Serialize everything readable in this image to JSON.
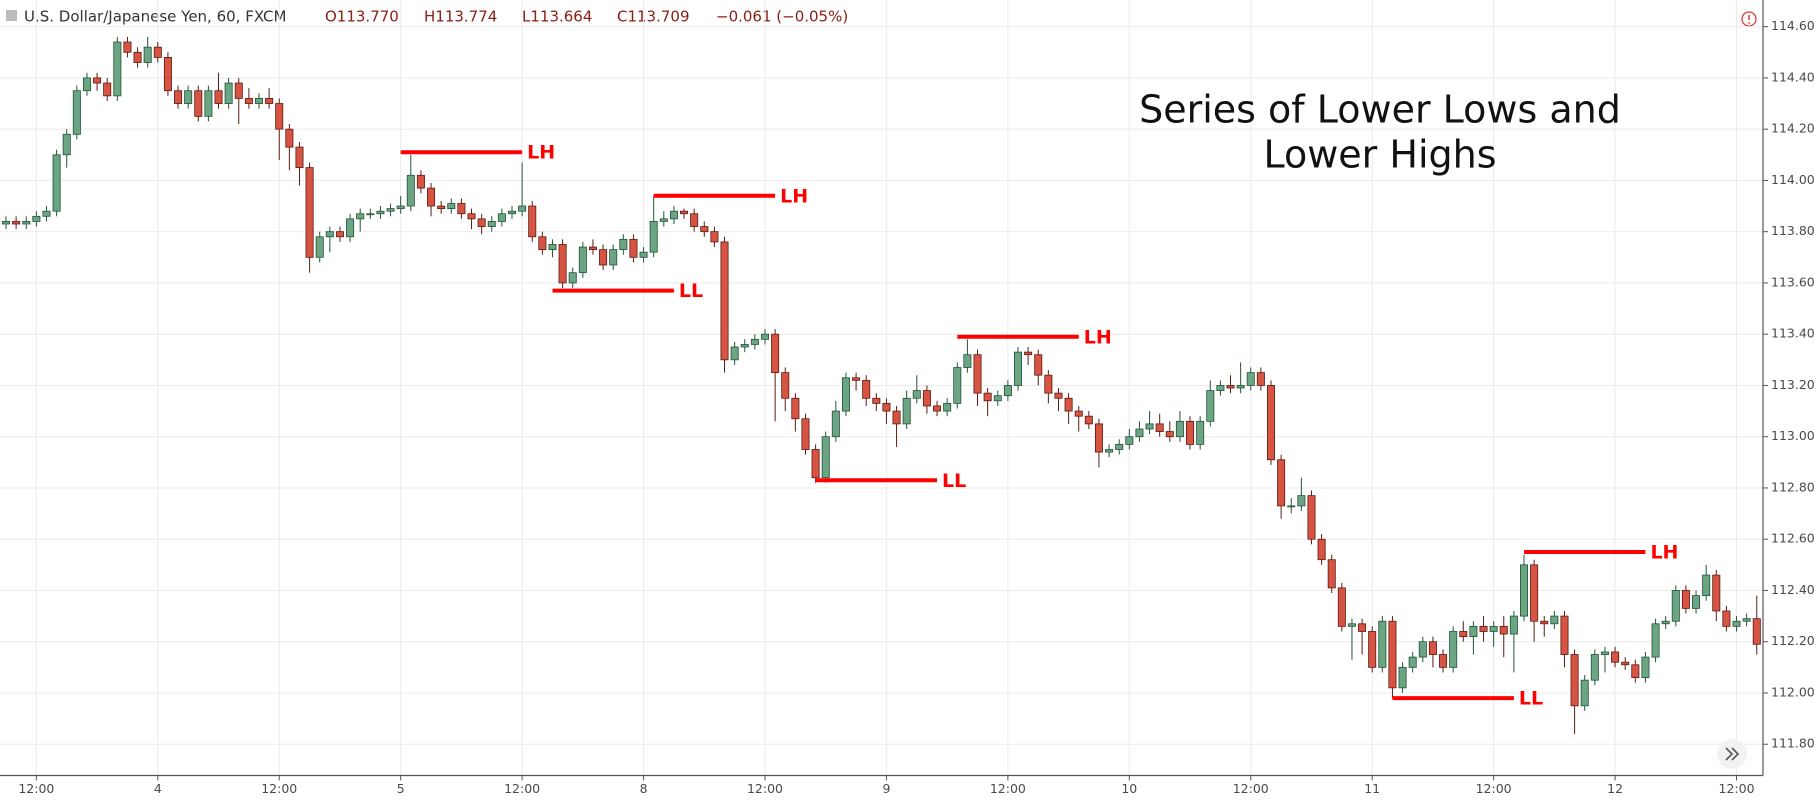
{
  "header": {
    "symbol": "U.S. Dollar/Japanese Yen, 60, FXCM",
    "open": "O113.770",
    "high": "H113.774",
    "low": "L113.664",
    "close": "C113.709",
    "change": "−0.061 (−0.05%)"
  },
  "chart_data": {
    "type": "candlestick",
    "title_lines": [
      "Series of Lower Lows and",
      "Lower Highs"
    ],
    "up_color": "#6ba583",
    "down_color": "#d75442",
    "up_border": "#225437",
    "down_border": "#5b1a13",
    "grid": true,
    "ylim": [
      111.678,
      114.704
    ],
    "yticks": [
      {
        "value": 111.8,
        "label": "111.800"
      },
      {
        "value": 112.0,
        "label": "112.000"
      },
      {
        "value": 112.2,
        "label": "112.200"
      },
      {
        "value": 112.4,
        "label": "112.400"
      },
      {
        "value": 112.6,
        "label": "112.600"
      },
      {
        "value": 112.8,
        "label": "112.800"
      },
      {
        "value": 113.0,
        "label": "113.000"
      },
      {
        "value": 113.2,
        "label": "113.200"
      },
      {
        "value": 113.4,
        "label": "113.400"
      },
      {
        "value": 113.6,
        "label": "113.600"
      },
      {
        "value": 113.8,
        "label": "113.800"
      },
      {
        "value": 114.0,
        "label": "114.000"
      },
      {
        "value": 114.2,
        "label": "114.200"
      },
      {
        "value": 114.4,
        "label": "114.400"
      },
      {
        "value": 114.6,
        "label": "114.600"
      }
    ],
    "categories": [
      null,
      null,
      null,
      "12:00",
      null,
      null,
      null,
      null,
      null,
      null,
      null,
      null,
      null,
      null,
      null,
      "4",
      null,
      null,
      null,
      null,
      null,
      null,
      null,
      null,
      null,
      null,
      null,
      "12:00",
      null,
      null,
      null,
      null,
      null,
      null,
      null,
      null,
      null,
      null,
      null,
      "5",
      null,
      null,
      null,
      null,
      null,
      null,
      null,
      null,
      null,
      null,
      null,
      "12:00",
      null,
      null,
      null,
      null,
      null,
      null,
      null,
      null,
      null,
      null,
      null,
      "8",
      null,
      null,
      null,
      null,
      null,
      null,
      null,
      null,
      null,
      null,
      null,
      "12:00",
      null,
      null,
      null,
      null,
      null,
      null,
      null,
      null,
      null,
      null,
      null,
      "9",
      null,
      null,
      null,
      null,
      null,
      null,
      null,
      null,
      null,
      null,
      null,
      "12:00",
      null,
      null,
      null,
      null,
      null,
      null,
      null,
      null,
      null,
      null,
      null,
      "10",
      null,
      null,
      null,
      null,
      null,
      null,
      null,
      null,
      null,
      null,
      null,
      "12:00",
      null,
      null,
      null,
      null,
      null,
      null,
      null,
      null,
      null,
      null,
      null,
      "11",
      null,
      null,
      null,
      null,
      null,
      null,
      null,
      null,
      null,
      null,
      null,
      "12:00",
      null,
      null,
      null,
      null,
      null,
      null,
      null,
      null,
      null,
      null,
      null,
      "12",
      null,
      null,
      null,
      null,
      null,
      null,
      null,
      null,
      null,
      null,
      null,
      "12:00",
      null,
      null
    ],
    "ohlc": [
      [
        113.83,
        113.86,
        113.81,
        113.84
      ],
      [
        113.84,
        113.86,
        113.81,
        113.83
      ],
      [
        113.83,
        113.86,
        113.81,
        113.84
      ],
      [
        113.84,
        113.88,
        113.82,
        113.86
      ],
      [
        113.86,
        113.9,
        113.84,
        113.88
      ],
      [
        113.88,
        114.12,
        113.86,
        114.1
      ],
      [
        114.1,
        114.2,
        114.05,
        114.18
      ],
      [
        114.18,
        114.37,
        114.16,
        114.35
      ],
      [
        114.35,
        114.42,
        114.33,
        114.4
      ],
      [
        114.4,
        114.42,
        114.35,
        114.38
      ],
      [
        114.38,
        114.4,
        114.31,
        114.33
      ],
      [
        114.33,
        114.56,
        114.31,
        114.54
      ],
      [
        114.54,
        114.56,
        114.48,
        114.5
      ],
      [
        114.5,
        114.52,
        114.44,
        114.46
      ],
      [
        114.46,
        114.56,
        114.44,
        114.52
      ],
      [
        114.52,
        114.54,
        114.46,
        114.48
      ],
      [
        114.48,
        114.5,
        114.33,
        114.35
      ],
      [
        114.35,
        114.37,
        114.28,
        114.3
      ],
      [
        114.3,
        114.37,
        114.28,
        114.35
      ],
      [
        114.35,
        114.37,
        114.23,
        114.25
      ],
      [
        114.25,
        114.37,
        114.23,
        114.35
      ],
      [
        114.35,
        114.42,
        114.28,
        114.3
      ],
      [
        114.3,
        114.4,
        114.28,
        114.38
      ],
      [
        114.38,
        114.4,
        114.22,
        114.32
      ],
      [
        114.32,
        114.36,
        114.28,
        114.3
      ],
      [
        114.3,
        114.34,
        114.28,
        114.32
      ],
      [
        114.32,
        114.36,
        114.28,
        114.3
      ],
      [
        114.3,
        114.32,
        114.08,
        114.2
      ],
      [
        114.2,
        114.22,
        114.04,
        114.13
      ],
      [
        114.13,
        114.15,
        113.98,
        114.05
      ],
      [
        114.05,
        114.07,
        113.64,
        113.7
      ],
      [
        113.7,
        113.8,
        113.68,
        113.78
      ],
      [
        113.78,
        113.82,
        113.72,
        113.8
      ],
      [
        113.8,
        113.82,
        113.76,
        113.78
      ],
      [
        113.78,
        113.87,
        113.76,
        113.85
      ],
      [
        113.85,
        113.89,
        113.8,
        113.87
      ],
      [
        113.87,
        113.89,
        113.85,
        113.87
      ],
      [
        113.87,
        113.9,
        113.85,
        113.88
      ],
      [
        113.88,
        113.91,
        113.86,
        113.89
      ],
      [
        113.89,
        113.94,
        113.87,
        113.9
      ],
      [
        113.9,
        114.1,
        113.88,
        114.02
      ],
      [
        114.02,
        114.04,
        113.95,
        113.97
      ],
      [
        113.97,
        113.99,
        113.86,
        113.9
      ],
      [
        113.9,
        113.92,
        113.87,
        113.89
      ],
      [
        113.89,
        113.93,
        113.87,
        113.91
      ],
      [
        113.91,
        113.93,
        113.85,
        113.87
      ],
      [
        113.87,
        113.89,
        113.81,
        113.85
      ],
      [
        113.85,
        113.87,
        113.79,
        113.82
      ],
      [
        113.82,
        113.86,
        113.8,
        113.84
      ],
      [
        113.84,
        113.89,
        113.82,
        113.87
      ],
      [
        113.87,
        113.9,
        113.85,
        113.88
      ],
      [
        113.88,
        114.07,
        113.86,
        113.9
      ],
      [
        113.9,
        113.92,
        113.76,
        113.78
      ],
      [
        113.78,
        113.8,
        113.71,
        113.73
      ],
      [
        113.73,
        113.77,
        113.7,
        113.75
      ],
      [
        113.75,
        113.77,
        113.58,
        113.6
      ],
      [
        113.6,
        113.66,
        113.58,
        113.64
      ],
      [
        113.64,
        113.76,
        113.62,
        113.74
      ],
      [
        113.74,
        113.77,
        113.71,
        113.73
      ],
      [
        113.73,
        113.75,
        113.65,
        113.67
      ],
      [
        113.67,
        113.75,
        113.65,
        113.73
      ],
      [
        113.73,
        113.79,
        113.71,
        113.77
      ],
      [
        113.77,
        113.79,
        113.68,
        113.7
      ],
      [
        113.7,
        113.74,
        113.68,
        113.72
      ],
      [
        113.72,
        113.94,
        113.7,
        113.84
      ],
      [
        113.84,
        113.88,
        113.82,
        113.85
      ],
      [
        113.85,
        113.9,
        113.83,
        113.88
      ],
      [
        113.88,
        113.89,
        113.85,
        113.87
      ],
      [
        113.87,
        113.89,
        113.8,
        113.82
      ],
      [
        113.82,
        113.84,
        113.78,
        113.8
      ],
      [
        113.8,
        113.82,
        113.74,
        113.76
      ],
      [
        113.76,
        113.78,
        113.25,
        113.3
      ],
      [
        113.3,
        113.37,
        113.28,
        113.35
      ],
      [
        113.35,
        113.38,
        113.33,
        113.36
      ],
      [
        113.36,
        113.4,
        113.34,
        113.38
      ],
      [
        113.38,
        113.42,
        113.36,
        113.4
      ],
      [
        113.4,
        113.42,
        113.06,
        113.25
      ],
      [
        113.25,
        113.27,
        113.1,
        113.15
      ],
      [
        113.15,
        113.17,
        113.02,
        113.07
      ],
      [
        113.07,
        113.09,
        112.93,
        112.95
      ],
      [
        112.95,
        112.97,
        112.82,
        112.84
      ],
      [
        112.84,
        113.02,
        112.82,
        113.0
      ],
      [
        113.0,
        113.14,
        112.98,
        113.1
      ],
      [
        113.1,
        113.25,
        113.08,
        113.23
      ],
      [
        113.23,
        113.25,
        113.18,
        113.22
      ],
      [
        113.22,
        113.24,
        113.12,
        113.15
      ],
      [
        113.15,
        113.17,
        113.1,
        113.13
      ],
      [
        113.13,
        113.15,
        113.05,
        113.1
      ],
      [
        113.1,
        113.12,
        112.96,
        113.05
      ],
      [
        113.05,
        113.18,
        113.03,
        113.15
      ],
      [
        113.15,
        113.24,
        113.13,
        113.18
      ],
      [
        113.18,
        113.2,
        113.09,
        113.12
      ],
      [
        113.12,
        113.14,
        113.08,
        113.1
      ],
      [
        113.1,
        113.15,
        113.08,
        113.13
      ],
      [
        113.13,
        113.29,
        113.11,
        113.27
      ],
      [
        113.27,
        113.38,
        113.25,
        113.32
      ],
      [
        113.32,
        113.34,
        113.12,
        113.17
      ],
      [
        113.17,
        113.19,
        113.08,
        113.14
      ],
      [
        113.14,
        113.18,
        113.12,
        113.16
      ],
      [
        113.16,
        113.22,
        113.14,
        113.2
      ],
      [
        113.2,
        113.35,
        113.18,
        113.33
      ],
      [
        113.33,
        113.35,
        113.28,
        113.32
      ],
      [
        113.32,
        113.34,
        113.2,
        113.24
      ],
      [
        113.24,
        113.26,
        113.13,
        113.17
      ],
      [
        113.17,
        113.19,
        113.1,
        113.15
      ],
      [
        113.15,
        113.17,
        113.05,
        113.1
      ],
      [
        113.1,
        113.12,
        113.02,
        113.08
      ],
      [
        113.08,
        113.1,
        113.03,
        113.05
      ],
      [
        113.05,
        113.07,
        112.88,
        112.94
      ],
      [
        112.94,
        112.97,
        112.92,
        112.95
      ],
      [
        112.95,
        112.99,
        112.93,
        112.97
      ],
      [
        112.97,
        113.03,
        112.95,
        113.0
      ],
      [
        113.0,
        113.06,
        112.98,
        113.03
      ],
      [
        113.03,
        113.1,
        113.01,
        113.05
      ],
      [
        113.05,
        113.09,
        113.0,
        113.02
      ],
      [
        113.02,
        113.06,
        112.98,
        113.0
      ],
      [
        113.0,
        113.1,
        112.98,
        113.06
      ],
      [
        113.06,
        113.08,
        112.95,
        112.97
      ],
      [
        112.97,
        113.08,
        112.95,
        113.06
      ],
      [
        113.06,
        113.22,
        113.04,
        113.18
      ],
      [
        113.18,
        113.22,
        113.16,
        113.2
      ],
      [
        113.2,
        113.24,
        113.17,
        113.19
      ],
      [
        113.19,
        113.29,
        113.17,
        113.2
      ],
      [
        113.2,
        113.27,
        113.18,
        113.25
      ],
      [
        113.25,
        113.27,
        113.18,
        113.2
      ],
      [
        113.2,
        113.22,
        112.89,
        112.91
      ],
      [
        112.91,
        112.93,
        112.68,
        112.73
      ],
      [
        112.73,
        112.76,
        112.7,
        112.73
      ],
      [
        112.73,
        112.84,
        112.71,
        112.77
      ],
      [
        112.77,
        112.79,
        112.58,
        112.6
      ],
      [
        112.6,
        112.62,
        112.5,
        112.52
      ],
      [
        112.52,
        112.54,
        112.39,
        112.41
      ],
      [
        112.41,
        112.43,
        112.24,
        112.26
      ],
      [
        112.26,
        112.29,
        112.13,
        112.27
      ],
      [
        112.27,
        112.29,
        112.15,
        112.24
      ],
      [
        112.24,
        112.26,
        112.08,
        112.1
      ],
      [
        112.1,
        112.3,
        112.08,
        112.28
      ],
      [
        112.28,
        112.3,
        111.98,
        112.02
      ],
      [
        112.02,
        112.12,
        112.0,
        112.1
      ],
      [
        112.1,
        112.16,
        112.08,
        112.14
      ],
      [
        112.14,
        112.22,
        112.12,
        112.2
      ],
      [
        112.2,
        112.22,
        112.1,
        112.15
      ],
      [
        112.15,
        112.17,
        112.08,
        112.1
      ],
      [
        112.1,
        112.26,
        112.08,
        112.24
      ],
      [
        112.24,
        112.28,
        112.2,
        112.22
      ],
      [
        112.22,
        112.28,
        112.15,
        112.26
      ],
      [
        112.26,
        112.3,
        112.2,
        112.24
      ],
      [
        112.24,
        112.28,
        112.18,
        112.26
      ],
      [
        112.26,
        112.3,
        112.14,
        112.23
      ],
      [
        112.23,
        112.32,
        112.08,
        112.3
      ],
      [
        112.3,
        112.54,
        112.28,
        112.5
      ],
      [
        112.5,
        112.52,
        112.2,
        112.28
      ],
      [
        112.28,
        112.3,
        112.22,
        112.27
      ],
      [
        112.27,
        112.32,
        112.25,
        112.3
      ],
      [
        112.3,
        112.32,
        112.1,
        112.15
      ],
      [
        112.15,
        112.17,
        111.84,
        111.95
      ],
      [
        111.95,
        112.07,
        111.93,
        112.05
      ],
      [
        112.05,
        112.17,
        112.03,
        112.15
      ],
      [
        112.15,
        112.18,
        112.08,
        112.16
      ],
      [
        112.16,
        112.18,
        112.1,
        112.12
      ],
      [
        112.12,
        112.14,
        112.09,
        112.11
      ],
      [
        112.11,
        112.13,
        112.04,
        112.06
      ],
      [
        112.06,
        112.16,
        112.04,
        112.14
      ],
      [
        112.14,
        112.29,
        112.12,
        112.27
      ],
      [
        112.27,
        112.3,
        112.25,
        112.28
      ],
      [
        112.28,
        112.42,
        112.26,
        112.4
      ],
      [
        112.4,
        112.42,
        112.31,
        112.33
      ],
      [
        112.33,
        112.4,
        112.31,
        112.38
      ],
      [
        112.38,
        112.5,
        112.36,
        112.46
      ],
      [
        112.46,
        112.48,
        112.28,
        112.32
      ],
      [
        112.32,
        112.34,
        112.24,
        112.26
      ],
      [
        112.26,
        112.3,
        112.24,
        112.28
      ],
      [
        112.28,
        112.31,
        112.26,
        112.29
      ],
      [
        112.29,
        112.38,
        112.15,
        112.19
      ]
    ],
    "annotation_color": "#ff0000",
    "annotations": [
      {
        "text": "LH",
        "y": 114.11,
        "x": [
          39,
          51
        ]
      },
      {
        "text": "LH",
        "y": 113.94,
        "x": [
          64,
          76
        ]
      },
      {
        "text": "LL",
        "y": 113.57,
        "x": [
          54,
          66
        ]
      },
      {
        "text": "LH",
        "y": 113.39,
        "x": [
          94,
          106
        ]
      },
      {
        "text": "LL",
        "y": 112.83,
        "x": [
          80,
          92
        ]
      },
      {
        "text": "LH",
        "y": 112.55,
        "x": [
          150,
          162
        ]
      },
      {
        "text": "LL",
        "y": 111.98,
        "x": [
          137,
          149
        ]
      }
    ]
  }
}
